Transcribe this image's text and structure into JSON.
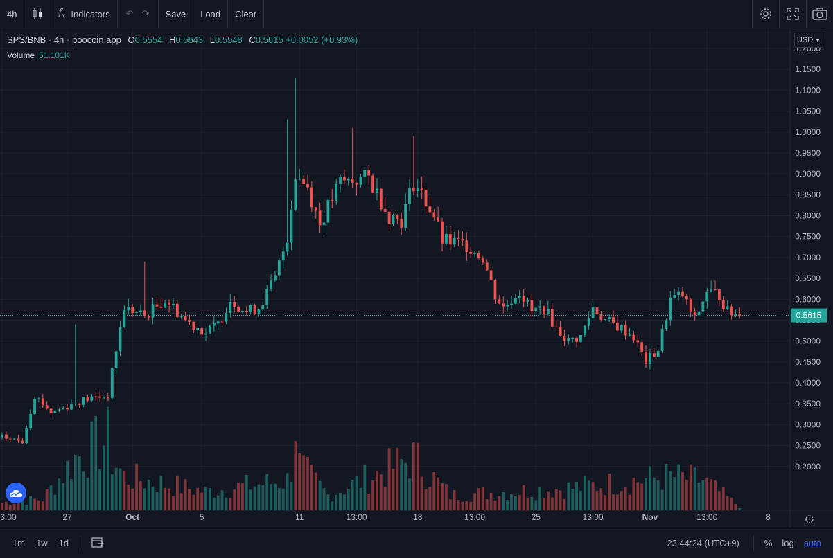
{
  "toolbar": {
    "interval": "4h",
    "indicators_label": "Indicators",
    "save_label": "Save",
    "load_label": "Load",
    "clear_label": "Clear",
    "icons": [
      "candles-icon",
      "fx-icon",
      "undo-icon",
      "redo-icon",
      "gear-icon",
      "fullscreen-icon",
      "camera-icon"
    ]
  },
  "legend": {
    "symbol": "SPS/BNB",
    "interval": "4h",
    "source": "poocoin.app",
    "open_label": "O",
    "open": "0.5554",
    "high_label": "H",
    "high": "0.5643",
    "low_label": "L",
    "low": "0.5548",
    "close_label": "C",
    "close": "0.5615",
    "change": "+0.0052 (+0.93%)",
    "volume_label": "Volume",
    "volume": "51.101K"
  },
  "price_scale": {
    "currency": "USD",
    "last_price_label": "0.5615"
  },
  "colors": {
    "background": "#131722",
    "up": "#26a69a",
    "down": "#ef5350",
    "grid": "#1c2030",
    "axis_text": "#b2b5be",
    "accent": "#2962ff"
  },
  "bottom": {
    "ranges": [
      "1m",
      "1w",
      "1d"
    ],
    "time": "23:44:24 (UTC+9)",
    "percent_label": "%",
    "log_label": "log",
    "auto_label": "auto"
  },
  "chart_data": {
    "type": "candlestick",
    "symbol": "SPS/BNB",
    "interval": "4h",
    "ylim": [
      0.15,
      1.2
    ],
    "y_ticks": [
      "1.2000",
      "1.1500",
      "1.1000",
      "1.0500",
      "1.0000",
      "0.9500",
      "0.9000",
      "0.8500",
      "0.8000",
      "0.7500",
      "0.7000",
      "0.6500",
      "0.6000",
      "0.5500",
      "0.5000",
      "0.4500",
      "0.4000",
      "0.3500",
      "0.3000",
      "0.2500",
      "0.2000"
    ],
    "x_ticks": [
      "3:00",
      "27",
      "Oct",
      "5",
      "11",
      "13:00",
      "18",
      "13:00",
      "25",
      "13:00",
      "Nov",
      "13:00",
      "8"
    ],
    "x_tick_index": [
      0,
      16,
      32,
      49,
      73,
      87,
      102,
      116,
      131,
      145,
      159,
      173,
      188
    ],
    "last_price": 0.5615,
    "price_keypoints": [
      [
        0,
        0.27
      ],
      [
        5,
        0.26
      ],
      [
        8,
        0.37
      ],
      [
        12,
        0.33
      ],
      [
        15,
        0.34
      ],
      [
        20,
        0.36
      ],
      [
        26,
        0.37
      ],
      [
        28,
        0.48
      ],
      [
        30,
        0.58
      ],
      [
        35,
        0.56
      ],
      [
        40,
        0.6
      ],
      [
        45,
        0.55
      ],
      [
        50,
        0.52
      ],
      [
        53,
        0.54
      ],
      [
        56,
        0.6
      ],
      [
        60,
        0.57
      ],
      [
        63,
        0.58
      ],
      [
        67,
        0.65
      ],
      [
        70,
        0.75
      ],
      [
        72,
        0.9
      ],
      [
        75,
        0.87
      ],
      [
        78,
        0.78
      ],
      [
        83,
        0.88
      ],
      [
        90,
        0.89
      ],
      [
        95,
        0.8
      ],
      [
        98,
        0.79
      ],
      [
        101,
        0.88
      ],
      [
        103,
        0.85
      ],
      [
        106,
        0.8
      ],
      [
        108,
        0.74
      ],
      [
        114,
        0.73
      ],
      [
        118,
        0.7
      ],
      [
        121,
        0.61
      ],
      [
        123,
        0.58
      ],
      [
        127,
        0.62
      ],
      [
        130,
        0.57
      ],
      [
        133,
        0.58
      ],
      [
        136,
        0.53
      ],
      [
        139,
        0.5
      ],
      [
        142,
        0.51
      ],
      [
        145,
        0.58
      ],
      [
        148,
        0.55
      ],
      [
        152,
        0.53
      ],
      [
        155,
        0.51
      ],
      [
        158,
        0.45
      ],
      [
        161,
        0.48
      ],
      [
        164,
        0.6
      ],
      [
        167,
        0.61
      ],
      [
        170,
        0.55
      ],
      [
        173,
        0.62
      ],
      [
        176,
        0.61
      ],
      [
        178,
        0.57
      ],
      [
        181,
        0.5615
      ]
    ],
    "spikes": [
      [
        72,
        1.13
      ],
      [
        86,
        1.01
      ],
      [
        101,
        0.99
      ],
      [
        18,
        0.54
      ],
      [
        70,
        1.03
      ],
      [
        35,
        0.69
      ]
    ],
    "volume_keypoints": [
      [
        0,
        0.02
      ],
      [
        10,
        0.03
      ],
      [
        18,
        0.14
      ],
      [
        26,
        0.19
      ],
      [
        27,
        0.14
      ],
      [
        30,
        0.09
      ],
      [
        35,
        0.08
      ],
      [
        50,
        0.05
      ],
      [
        70,
        0.08
      ],
      [
        71,
        0.12
      ],
      [
        72,
        0.24
      ],
      [
        73,
        0.12
      ],
      [
        80,
        0.04
      ],
      [
        101,
        0.14
      ],
      [
        110,
        0.04
      ],
      [
        140,
        0.06
      ],
      [
        164,
        0.09
      ],
      [
        172,
        0.08
      ],
      [
        181,
        0.01
      ]
    ],
    "volume_ylim": [
      0,
      0.26
    ]
  }
}
